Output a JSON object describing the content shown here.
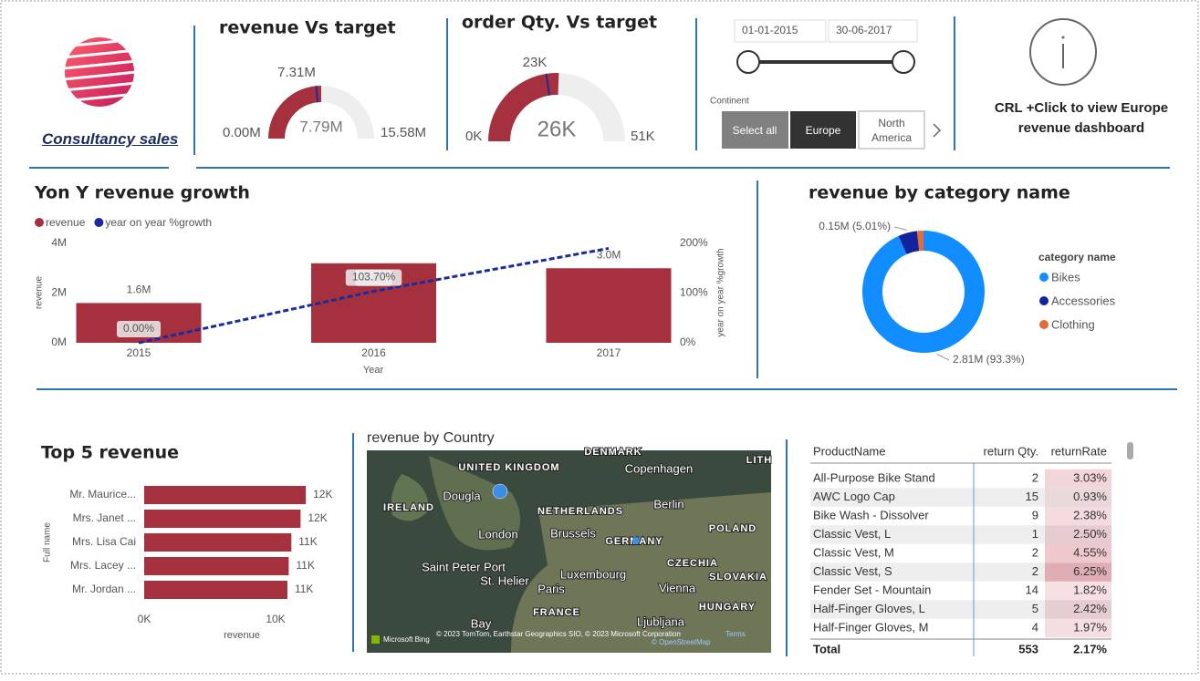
{
  "header": {
    "brand": "Consultancy sales"
  },
  "revenue_gauge": {
    "title": "revenue Vs target",
    "min": 0,
    "max": 15.58,
    "value": 7.79,
    "target": 7.31,
    "color": "#a4313d",
    "labels": {
      "min": "0.00M",
      "max": "15.58M",
      "value": "7.79M",
      "target": "7.31M"
    }
  },
  "qty_gauge": {
    "title": "order Qty. Vs target",
    "min": 0,
    "max": 51,
    "value": 26,
    "target": 23,
    "color": "#a4313d",
    "labels": {
      "min": "0K",
      "max": "51K",
      "value": "26K",
      "target": "23K"
    }
  },
  "date_slicer": {
    "start": "01-01-2015",
    "end": "30-06-2017"
  },
  "continent_slicer": {
    "label": "Continent",
    "options": [
      "Select all",
      "Europe",
      "North America"
    ]
  },
  "info": {
    "text": "CRL +Click to view Europe revenue dashboard"
  },
  "yoy_chart": {
    "type": "bar-line",
    "title": "Yon Y revenue growth",
    "x_label": "Year",
    "y_label": "revenue",
    "y2_label": "year on year %growth",
    "categories": [
      "2015",
      "2016",
      "2017"
    ],
    "series": [
      {
        "name": "revenue",
        "color": "#a4313d",
        "values": [
          1.6,
          3.2,
          3.0
        ],
        "value_labels": [
          "1.6M",
          "3.2M",
          "3.0M"
        ]
      },
      {
        "name": "year on year %growth",
        "color": "#1a2aa0",
        "axis": "y2",
        "values": [
          0,
          103.7,
          190
        ],
        "value_labels": [
          "0.00%",
          "103.70%",
          null
        ]
      }
    ],
    "ylim": [
      0,
      4
    ],
    "yticks": [
      {
        "value": 0,
        "label": "0M"
      },
      {
        "value": 2,
        "label": "2M"
      },
      {
        "value": 4,
        "label": "4M"
      }
    ],
    "y2lim": [
      0,
      200
    ],
    "y2ticks": [
      {
        "value": 0,
        "label": "0%"
      },
      {
        "value": 100,
        "label": "100%"
      },
      {
        "value": 200,
        "label": "200%"
      }
    ]
  },
  "category_chart": {
    "type": "donut",
    "title": "revenue by category name",
    "legend_title": "category name",
    "categories": [
      "Bikes",
      "Accessories",
      "Clothing"
    ],
    "values": [
      93.3,
      5.01,
      1.69
    ],
    "value_labels": [
      "2.81M (93.3%)",
      "0.15M (5.01%)",
      null
    ],
    "colors": [
      "#118dff",
      "#12239e",
      "#e66c37"
    ]
  },
  "top5_chart": {
    "type": "hbar",
    "title": "Top 5 revenue",
    "x_label": "revenue",
    "y_label": "Full name",
    "color": "#a4313d",
    "categories": [
      "Mr. Maurice...",
      "Mrs. Janet ...",
      "Mrs. Lisa Cai",
      "Mrs. Lacey ...",
      "Mr. Jordan ..."
    ],
    "values": [
      12.3,
      11.9,
      11.2,
      11.0,
      10.9
    ],
    "value_labels": [
      "12K",
      "12K",
      "11K",
      "11K",
      "11K"
    ],
    "xlim": [
      0,
      13
    ],
    "xticks": [
      {
        "value": 0,
        "label": "0K"
      },
      {
        "value": 10,
        "label": "10K"
      }
    ]
  },
  "map": {
    "title": "revenue by Country",
    "places": [
      "UNITED KINGDOM",
      "IRELAND",
      "Dougla",
      "London",
      "NETHERLANDS",
      "Brussels",
      "Berlin",
      "GERMANY",
      "POLAND",
      "Copenhagen",
      "DENMARK",
      "LITH",
      "Saint Peter Port",
      "St. Helier",
      "Paris",
      "Luxembourg",
      "CZECHIA",
      "SLOVAKIA",
      "Vienna",
      "HUNGARY",
      "FRANCE",
      "Ljubljana",
      "Bay"
    ],
    "attribution": "© 2023 TomTom, Earthstar Geographics SIO, © 2023 Microsoft Corporation",
    "terms": "Terms",
    "osm": "© OpenStreetMap",
    "provider": "Microsoft Bing"
  },
  "table": {
    "columns": [
      "ProductName",
      "return Qty.",
      "returnRate"
    ],
    "rows": [
      [
        "All-Purpose Bike Stand",
        2,
        "3.03%"
      ],
      [
        "AWC Logo Cap",
        15,
        "0.93%"
      ],
      [
        "Bike Wash - Dissolver",
        9,
        "2.38%"
      ],
      [
        "Classic Vest, L",
        1,
        "2.50%"
      ],
      [
        "Classic Vest, M",
        2,
        "4.55%"
      ],
      [
        "Classic Vest, S",
        2,
        "6.25%"
      ],
      [
        "Fender Set - Mountain",
        14,
        "1.82%"
      ],
      [
        "Half-Finger Gloves, L",
        5,
        "2.42%"
      ],
      [
        "Half-Finger Gloves, M",
        4,
        "1.97%"
      ]
    ],
    "total": [
      "Total",
      553,
      "2.17%"
    ]
  }
}
